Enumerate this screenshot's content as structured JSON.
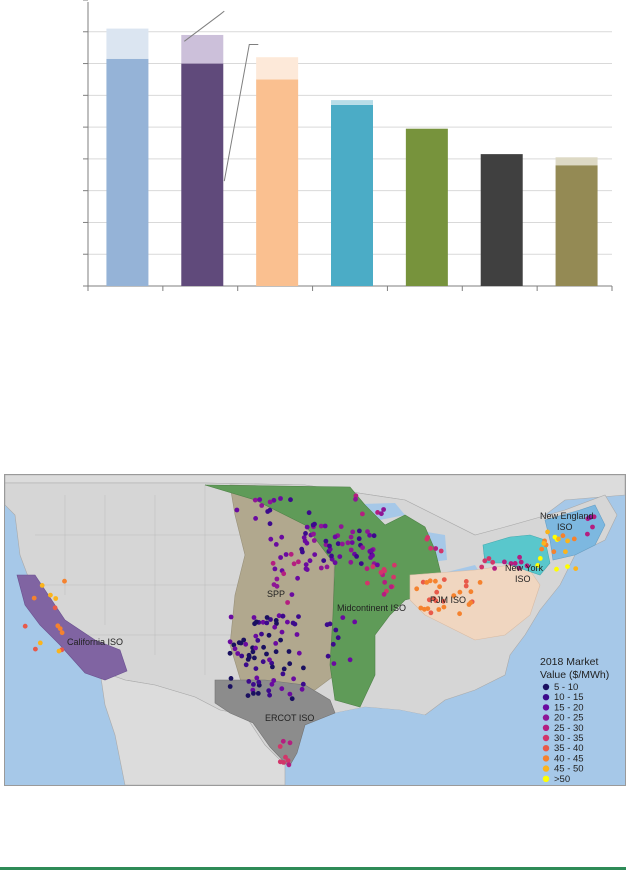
{
  "chart_data": [
    {
      "type": "bar",
      "categories": [
        "",
        "",
        "",
        "",
        "",
        "",
        ""
      ],
      "series": [
        {
          "values": [
            71.5,
            70,
            65,
            57,
            49.5,
            41.5,
            38
          ]
        },
        {
          "values": [
            9.5,
            9,
            7,
            1.5,
            0,
            0,
            2.5
          ]
        }
      ],
      "colors": {
        "base": [
          "#95b3d7",
          "#604a7b",
          "#fac090",
          "#4bacc6",
          "#77933c",
          "#404040",
          "#948a54"
        ],
        "top": [
          "#dbe5f1",
          "#ccc0da",
          "#fde9d9",
          "#b7dde8",
          "#77933c",
          "#404040",
          "#ddd9c4"
        ]
      },
      "ylim": [
        0,
        90
      ],
      "grid": true
    },
    {
      "type": "map",
      "regions": [
        {
          "label": "California ISO",
          "color": "#8064a2"
        },
        {
          "label": "SPP",
          "color": "#b1a88e"
        },
        {
          "label": "Midcontinent ISO",
          "color": "#5f9b58"
        },
        {
          "label": "ERCOT ISO",
          "color": "#8c8c8c"
        },
        {
          "label": "PJM ISO",
          "color": "#f0d6c0"
        },
        {
          "label": "New York ISO",
          "color": "#59c7cc"
        },
        {
          "label": "New England ISO",
          "color": "#7db8e0"
        }
      ],
      "legend": {
        "title_line1": "2018 Market",
        "title_line2": "Value ($/MWh)",
        "items": [
          {
            "label": "5 - 10",
            "color": "#1a1060"
          },
          {
            "label": "10 - 15",
            "color": "#3c0a8c"
          },
          {
            "label": "15 - 20",
            "color": "#6a0aa0"
          },
          {
            "label": "20 - 25",
            "color": "#8e1696"
          },
          {
            "label": "25 - 30",
            "color": "#b41e80"
          },
          {
            "label": "30 - 35",
            "color": "#d2366a"
          },
          {
            "label": "35 - 40",
            "color": "#e85a4a"
          },
          {
            "label": "40 - 45",
            "color": "#f5822e"
          },
          {
            "label": "45 - 50",
            "color": "#fbb41c"
          },
          {
            "label": ">50",
            "color": "#ffff00"
          }
        ]
      }
    }
  ]
}
